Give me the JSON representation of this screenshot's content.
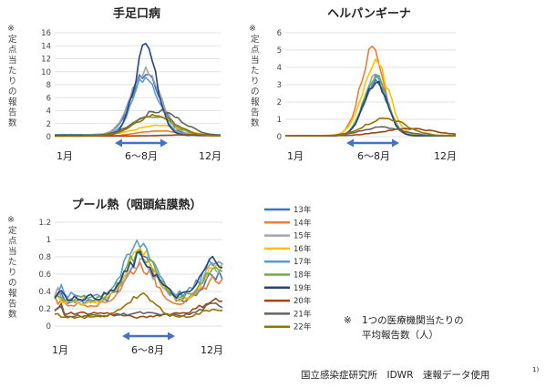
{
  "ylabel_mark": "※",
  "ylabel_text": "定点当たりの報告数",
  "month_start": "1月",
  "month_end": "12月",
  "period_label": "6～8月",
  "colors": {
    "13年": "#4472c4",
    "14年": "#ed7d31",
    "15年": "#a5a5a5",
    "16年": "#ffc000",
    "17年": "#5b9bd5",
    "18年": "#70ad47",
    "19年": "#264478",
    "20年": "#9e480e",
    "21年": "#636363",
    "22年": "#997300",
    "arrow": "#4472c4"
  },
  "legend": [
    "13年",
    "14年",
    "15年",
    "16年",
    "17年",
    "18年",
    "19年",
    "20年",
    "21年",
    "22年"
  ],
  "note_mark": "※",
  "note_line1": "1つの医療機関当たりの",
  "note_line2": "平均報告数（人）",
  "source": "国立感染症研究所　IDWR　速報データ使用",
  "source_sup": "1)",
  "chart_data": [
    {
      "type": "line",
      "title": "手足口病",
      "ylim": [
        0,
        16
      ],
      "yticks": [
        0,
        2,
        4,
        6,
        8,
        10,
        12,
        14,
        16
      ],
      "x": "week",
      "series": [
        {
          "name": "13年",
          "peak_week": 29,
          "peak": 9.5,
          "base": 0.2,
          "width": 4.5
        },
        {
          "name": "14年",
          "peak_week": 33,
          "peak": 0.8,
          "base": 0.1,
          "width": 6
        },
        {
          "name": "15年",
          "peak_week": 29,
          "peak": 10.2,
          "base": 0.3,
          "width": 4.5
        },
        {
          "name": "16年",
          "peak_week": 33,
          "peak": 1.5,
          "base": 0.2,
          "width": 7
        },
        {
          "name": "17年",
          "peak_week": 29,
          "peak": 9.0,
          "base": 0.3,
          "width": 4
        },
        {
          "name": "18年",
          "peak_week": 31,
          "peak": 3.0,
          "base": 0.2,
          "width": 6
        },
        {
          "name": "19年",
          "peak_week": 29,
          "peak": 13.3,
          "base": 0.2,
          "width": 3.5
        },
        {
          "name": "20年",
          "peak_week": 44,
          "peak": 0.2,
          "base": 0.1,
          "width": 8
        },
        {
          "name": "21年",
          "peak_week": 33,
          "peak": 3.8,
          "base": 0.1,
          "width": 7
        },
        {
          "name": "22年",
          "peak_week": 32,
          "peak": 3.2,
          "base": 0.1,
          "width": 6
        }
      ]
    },
    {
      "type": "line",
      "title": "ヘルパンギーナ",
      "ylim": [
        0,
        6
      ],
      "yticks": [
        0,
        1,
        2,
        3,
        4,
        5,
        6
      ],
      "x": "week",
      "series": [
        {
          "name": "13年",
          "peak_week": 28,
          "peak": 3.2,
          "base": 0.05,
          "width": 3.5
        },
        {
          "name": "14年",
          "peak_week": 27,
          "peak": 4.9,
          "base": 0.05,
          "width": 3.5
        },
        {
          "name": "15年",
          "peak_week": 28,
          "peak": 3.4,
          "base": 0.05,
          "width": 3.5
        },
        {
          "name": "16年",
          "peak_week": 28,
          "peak": 4.1,
          "base": 0.05,
          "width": 4
        },
        {
          "name": "17年",
          "peak_week": 28,
          "peak": 3.3,
          "base": 0.05,
          "width": 3.5
        },
        {
          "name": "18年",
          "peak_week": 28,
          "peak": 3.4,
          "base": 0.05,
          "width": 3.5
        },
        {
          "name": "19年",
          "peak_week": 28,
          "peak": 3.0,
          "base": 0.05,
          "width": 3.5
        },
        {
          "name": "20年",
          "peak_week": 38,
          "peak": 0.4,
          "base": 0.05,
          "width": 8
        },
        {
          "name": "21年",
          "peak_week": 30,
          "peak": 0.5,
          "base": 0.05,
          "width": 6
        },
        {
          "name": "22年",
          "peak_week": 31,
          "peak": 1.0,
          "base": 0.05,
          "width": 6
        }
      ]
    },
    {
      "type": "line",
      "title": "プール熱（咽頭結膜熱）",
      "ylim": [
        0,
        1.2
      ],
      "yticks": [
        0,
        0.2,
        0.4,
        0.6,
        0.8,
        1,
        1.2
      ],
      "x": "week",
      "series": [
        {
          "name": "13年",
          "summer": 0.8,
          "winter": 0.6,
          "base": 0.28
        },
        {
          "name": "14年",
          "summer": 0.7,
          "winter": 0.55,
          "base": 0.25
        },
        {
          "name": "15年",
          "summer": 0.75,
          "winter": 0.7,
          "base": 0.3
        },
        {
          "name": "16年",
          "summer": 0.88,
          "winter": 0.7,
          "base": 0.28
        },
        {
          "name": "17年",
          "summer": 0.95,
          "winter": 0.75,
          "base": 0.35
        },
        {
          "name": "18年",
          "summer": 0.85,
          "winter": 0.68,
          "base": 0.32
        },
        {
          "name": "19年",
          "summer": 0.78,
          "winter": 0.78,
          "base": 0.33
        },
        {
          "name": "20年",
          "summer": 0.1,
          "winter": 0.3,
          "base": 0.15
        },
        {
          "name": "21年",
          "summer": 0.15,
          "winter": 0.25,
          "base": 0.12
        },
        {
          "name": "22年",
          "summer": 0.35,
          "winter": 0.2,
          "base": 0.1
        }
      ]
    }
  ]
}
